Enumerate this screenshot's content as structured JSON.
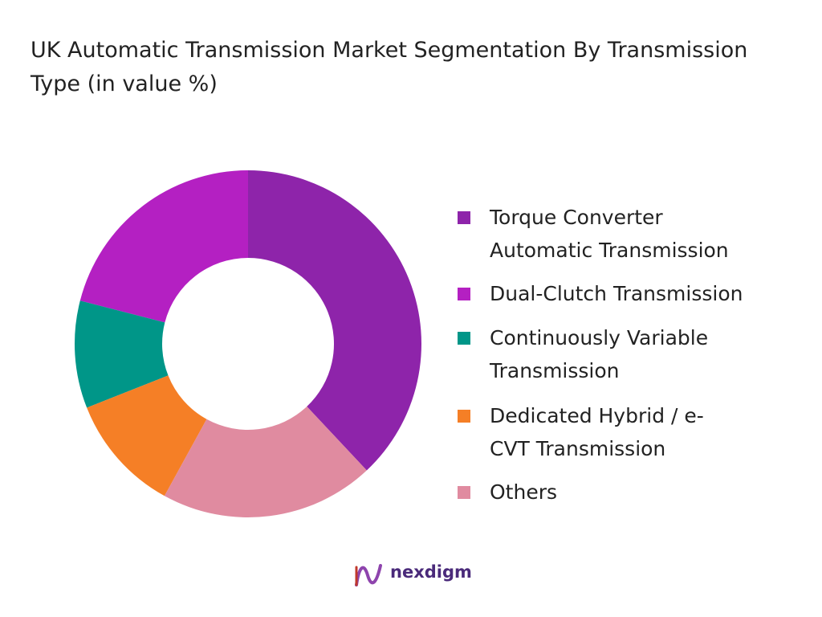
{
  "chart_data": {
    "type": "donut",
    "title": "UK Automatic Transmission Market Segmentation By Transmission Type (in value %)",
    "categories": [
      "Torque Converter Automatic Transmission",
      "Dual-Clutch Transmission",
      "Continuously Variable Transmission",
      "Dedicated Hybrid / e-CVT Transmission",
      "Others"
    ],
    "values": [
      38,
      21,
      10,
      11,
      20
    ],
    "colors": [
      "#8e24aa",
      "#b420c2",
      "#009688",
      "#f57f26",
      "#e08ba0"
    ]
  },
  "brand": "nexdigm"
}
